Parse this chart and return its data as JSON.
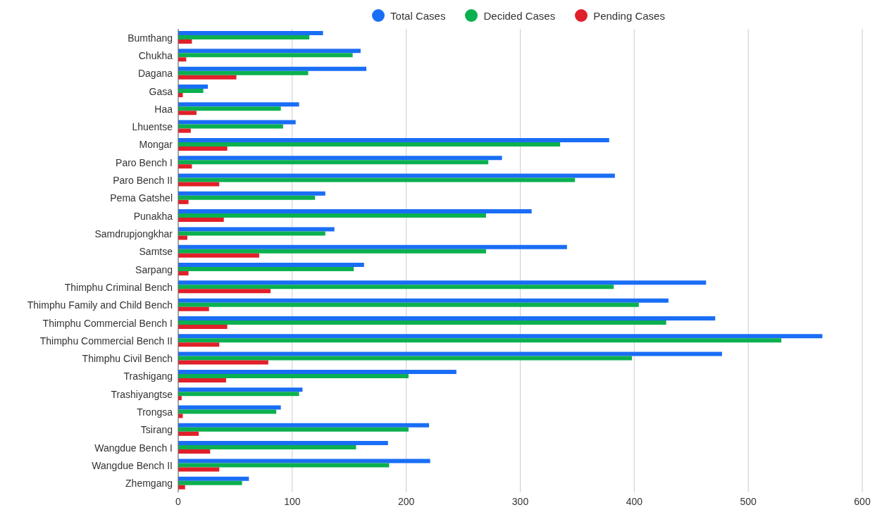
{
  "chart_data": {
    "type": "bar",
    "orientation": "horizontal",
    "categories": [
      "Bumthang",
      "Chukha",
      "Dagana",
      "Gasa",
      "Haa",
      "Lhuentse",
      "Mongar",
      "Paro Bench I",
      "Paro Bench II",
      "Pema Gatshel",
      "Punakha",
      "Samdrupjongkhar",
      "Samtse",
      "Sarpang",
      "Thimphu Criminal Bench",
      "Thimphu Family and Child Bench",
      "Thimphu Commercial Bench I",
      "Thimphu Commercial Bench II",
      "Thimphu Civil Bench",
      "Trashigang",
      "Trashiyangtse",
      "Trongsa",
      "Tsirang",
      "Wangdue Bench I",
      "Wangdue Bench II",
      "Zhemgang"
    ],
    "series": [
      {
        "name": "Total Cases",
        "color": "#1a6ef5",
        "values": [
          127,
          160,
          165,
          26,
          106,
          103,
          378,
          284,
          383,
          129,
          310,
          137,
          341,
          163,
          463,
          430,
          471,
          565,
          477,
          244,
          109,
          90,
          220,
          184,
          221,
          62
        ]
      },
      {
        "name": "Decided Cases",
        "color": "#0bb04f",
        "values": [
          115,
          153,
          114,
          22,
          90,
          92,
          335,
          272,
          348,
          120,
          270,
          129,
          270,
          154,
          382,
          404,
          428,
          529,
          398,
          202,
          106,
          86,
          202,
          156,
          185,
          56
        ]
      },
      {
        "name": "Pending Cases",
        "color": "#e0202a",
        "values": [
          12,
          7,
          51,
          4,
          16,
          11,
          43,
          12,
          36,
          9,
          40,
          8,
          71,
          9,
          81,
          27,
          43,
          36,
          79,
          42,
          3,
          4,
          18,
          28,
          36,
          6
        ]
      }
    ],
    "xlim": [
      0,
      600
    ],
    "xticks": [
      0,
      100,
      200,
      300,
      400,
      500,
      600
    ],
    "grid": "x",
    "legend": "top"
  }
}
